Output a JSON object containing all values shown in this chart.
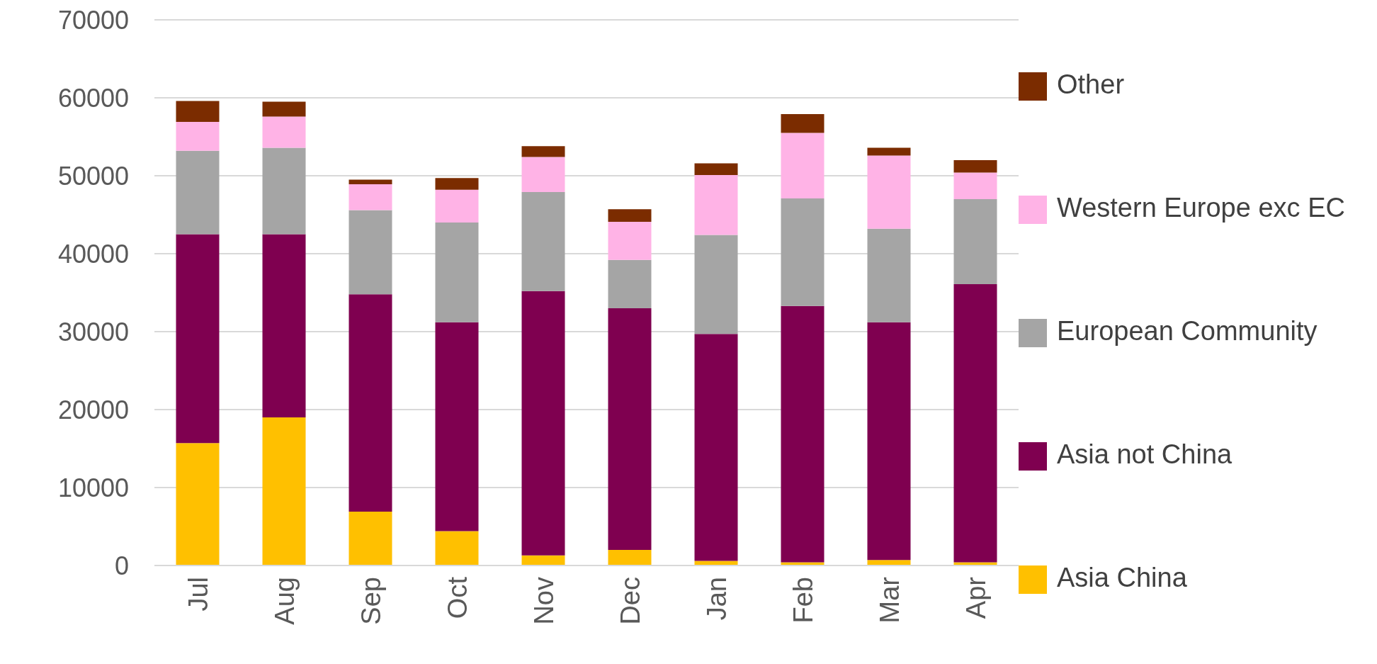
{
  "chart_data": {
    "type": "bar",
    "stacked": true,
    "categories": [
      "Jul",
      "Aug",
      "Sep",
      "Oct",
      "Nov",
      "Dec",
      "Jan",
      "Feb",
      "Mar",
      "Apr"
    ],
    "series": [
      {
        "name": "Asia China",
        "color": "#ffc000",
        "values": [
          15700,
          19000,
          6900,
          4400,
          1300,
          2000,
          600,
          400,
          700,
          400
        ]
      },
      {
        "name": "Asia not China",
        "color": "#7f0050",
        "values": [
          26800,
          23500,
          27900,
          26800,
          33900,
          31000,
          29100,
          32900,
          30500,
          35700
        ]
      },
      {
        "name": "European Community",
        "color": "#a5a5a5",
        "values": [
          10700,
          11100,
          10800,
          12800,
          12700,
          6200,
          12700,
          13800,
          12000,
          10900
        ]
      },
      {
        "name": "Western Europe exc EC",
        "color": "#ffb3e6",
        "values": [
          3700,
          4000,
          3300,
          4200,
          4500,
          4900,
          7700,
          8400,
          9400,
          3400
        ]
      },
      {
        "name": "Other",
        "color": "#7b2c00",
        "values": [
          2700,
          1900,
          600,
          1500,
          1400,
          1600,
          1500,
          2400,
          1000,
          1600
        ]
      }
    ],
    "ylim": [
      0,
      70000
    ],
    "yticks": [
      0,
      10000,
      20000,
      30000,
      40000,
      50000,
      60000,
      70000
    ],
    "grid": "y",
    "legend": "right"
  }
}
